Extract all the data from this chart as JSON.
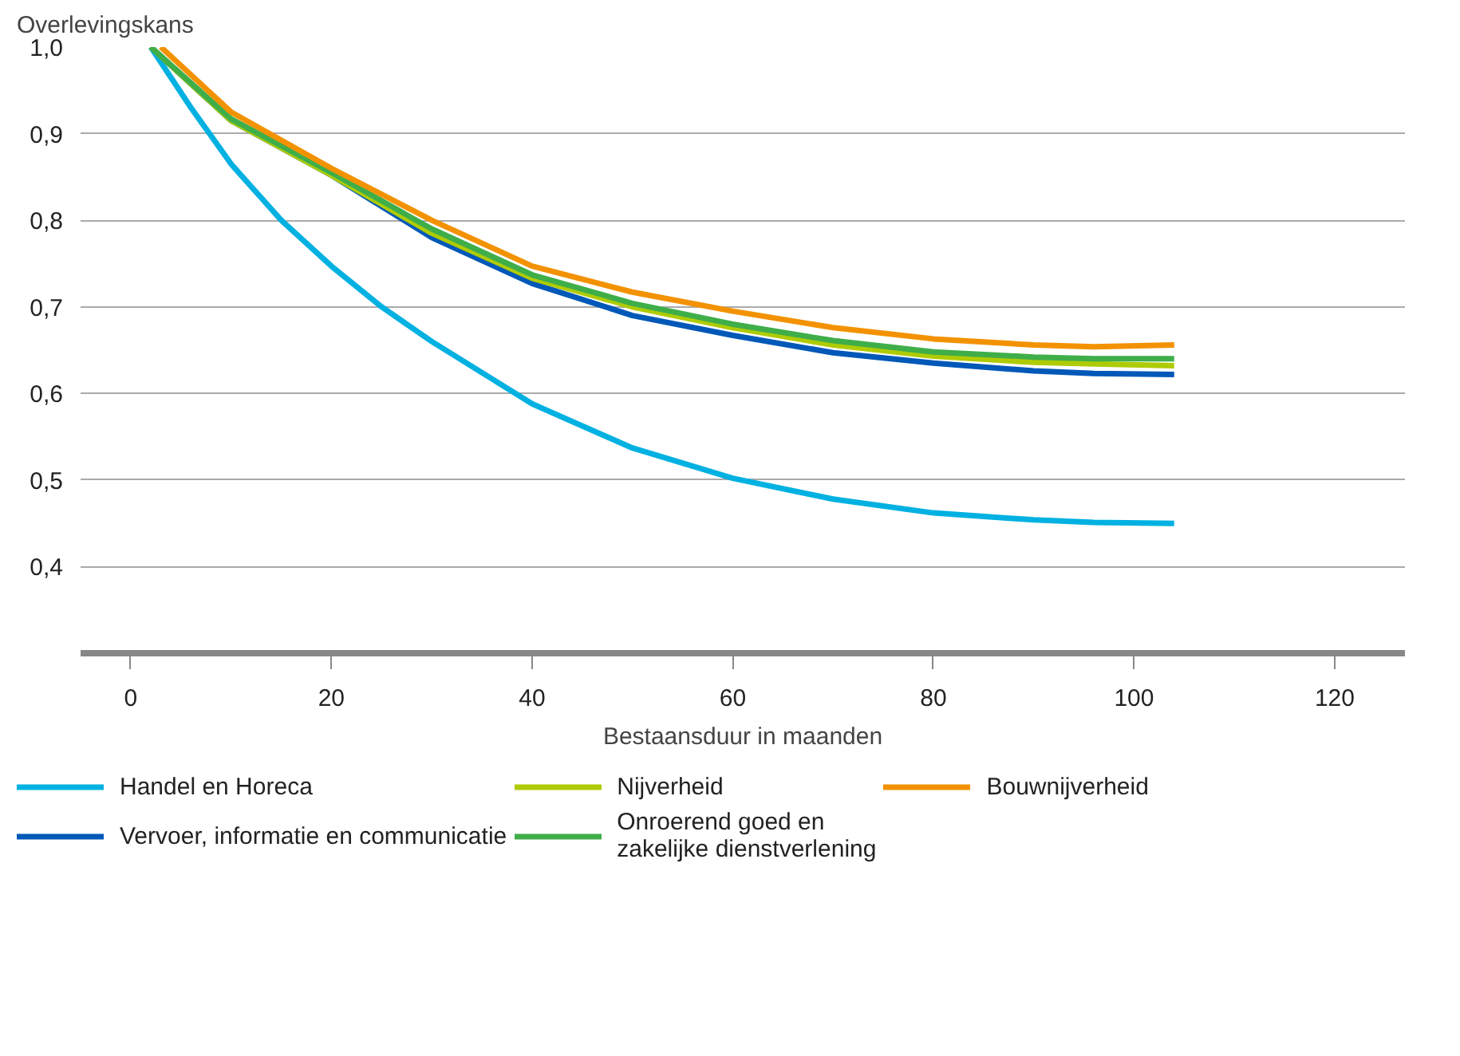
{
  "chart_data": {
    "type": "line",
    "ylabel": "Overlevingskans",
    "xlabel": "Bestaansduur in maanden",
    "xlim": [
      -5,
      127
    ],
    "xticks": [
      0,
      20,
      40,
      60,
      80,
      100,
      120
    ],
    "ylim": [
      0.3,
      1.0
    ],
    "yticks": [
      {
        "value": 0.4,
        "label": "0,4"
      },
      {
        "value": 0.5,
        "label": "0,5"
      },
      {
        "value": 0.6,
        "label": "0,6"
      },
      {
        "value": 0.7,
        "label": "0,7"
      },
      {
        "value": 0.8,
        "label": "0,8"
      },
      {
        "value": 0.9,
        "label": "0,9"
      },
      {
        "value": 1.0,
        "label": "1,0"
      }
    ],
    "grid": "y",
    "legend": "bottom",
    "series": [
      {
        "name": "Handel en Horeca",
        "color": "#00b1e1",
        "x": [
          2,
          6,
          10,
          15,
          20,
          25,
          30,
          40,
          50,
          60,
          70,
          80,
          90,
          96,
          104
        ],
        "values": [
          1.0,
          0.93,
          0.865,
          0.8,
          0.747,
          0.7,
          0.66,
          0.588,
          0.537,
          0.502,
          0.478,
          0.462,
          0.454,
          0.451,
          0.45
        ]
      },
      {
        "name": "Vervoer, informatie en communicatie",
        "color": "#0058b8",
        "x": [
          2,
          10,
          20,
          30,
          40,
          50,
          60,
          70,
          80,
          90,
          96,
          104
        ],
        "values": [
          1.0,
          0.915,
          0.852,
          0.78,
          0.727,
          0.69,
          0.667,
          0.647,
          0.635,
          0.626,
          0.623,
          0.622
        ]
      },
      {
        "name": "Nijverheid",
        "color": "#afcb05",
        "x": [
          2,
          10,
          20,
          30,
          40,
          50,
          60,
          70,
          80,
          90,
          96,
          104
        ],
        "values": [
          1.0,
          0.915,
          0.852,
          0.785,
          0.733,
          0.7,
          0.676,
          0.656,
          0.643,
          0.636,
          0.634,
          0.632
        ]
      },
      {
        "name": "Onroerend goed en\nzakelijke dienstverlening",
        "color": "#3fae49",
        "x": [
          2,
          10,
          20,
          30,
          40,
          50,
          60,
          70,
          80,
          90,
          96,
          104
        ],
        "values": [
          1.0,
          0.917,
          0.855,
          0.79,
          0.737,
          0.704,
          0.68,
          0.661,
          0.648,
          0.642,
          0.64,
          0.64
        ]
      },
      {
        "name": "Bouwnijverheid",
        "color": "#f39200",
        "x": [
          3,
          10,
          20,
          30,
          40,
          50,
          60,
          70,
          80,
          90,
          96,
          104
        ],
        "values": [
          1.0,
          0.925,
          0.86,
          0.8,
          0.747,
          0.717,
          0.695,
          0.676,
          0.663,
          0.656,
          0.654,
          0.656
        ]
      }
    ]
  }
}
